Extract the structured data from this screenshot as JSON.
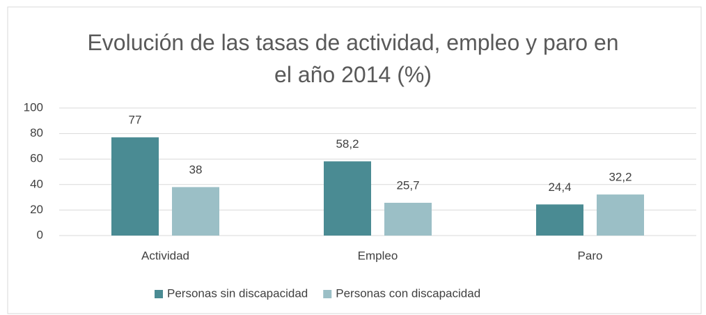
{
  "chart_data": {
    "type": "bar",
    "title": "Evolución de las tasas de actividad, empleo y paro en el año 2014 (%)",
    "categories": [
      "Actividad",
      "Empleo",
      "Paro"
    ],
    "series": [
      {
        "name": "Personas sin discapacidad",
        "color": "#4a8b93",
        "values": [
          77,
          58.2,
          24.4
        ],
        "value_labels": [
          "77",
          "58,2",
          "24,4"
        ]
      },
      {
        "name": "Personas con discapacidad",
        "color": "#9bbfc6",
        "values": [
          38,
          25.7,
          32.2
        ],
        "value_labels": [
          "38",
          "25,7",
          "32,2"
        ]
      }
    ],
    "ylim": [
      0,
      100
    ],
    "yticks": [
      0,
      20,
      40,
      60,
      80,
      100
    ],
    "grid": true,
    "legend": "bottom"
  }
}
